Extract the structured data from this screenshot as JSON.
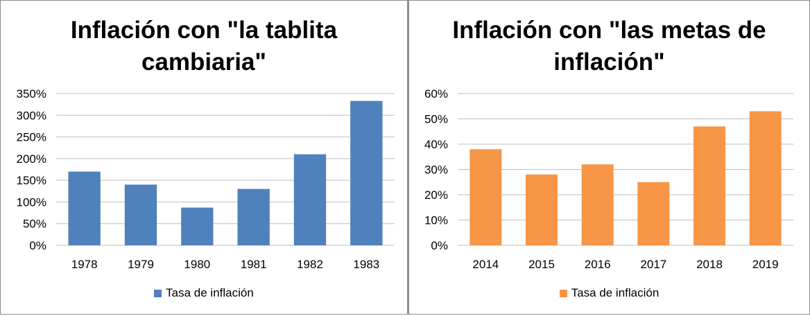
{
  "chart_data": [
    {
      "type": "bar",
      "title": "Inflación con \"la tablita cambiaria\"",
      "categories": [
        "1978",
        "1979",
        "1980",
        "1981",
        "1982",
        "1983"
      ],
      "series": [
        {
          "name": "Tasa de inflación",
          "values": [
            170,
            140,
            87,
            130,
            210,
            333
          ]
        }
      ],
      "value_unit": "%",
      "ylim": [
        0,
        350
      ],
      "yticks": [
        "0%",
        "50%",
        "100%",
        "150%",
        "200%",
        "250%",
        "300%",
        "350%"
      ],
      "color": "#4f81bd",
      "grid": true,
      "legend_position": "bottom"
    },
    {
      "type": "bar",
      "title": "Inflación con \"las metas de inflación\"",
      "categories": [
        "2014",
        "2015",
        "2016",
        "2017",
        "2018",
        "2019"
      ],
      "series": [
        {
          "name": "Tasa de inflación",
          "values": [
            38,
            28,
            32,
            25,
            47,
            53
          ]
        }
      ],
      "value_unit": "%",
      "ylim": [
        0,
        60
      ],
      "yticks": [
        "0%",
        "10%",
        "20%",
        "30%",
        "40%",
        "50%",
        "60%"
      ],
      "color": "#f79646",
      "grid": true,
      "legend_position": "bottom"
    }
  ]
}
